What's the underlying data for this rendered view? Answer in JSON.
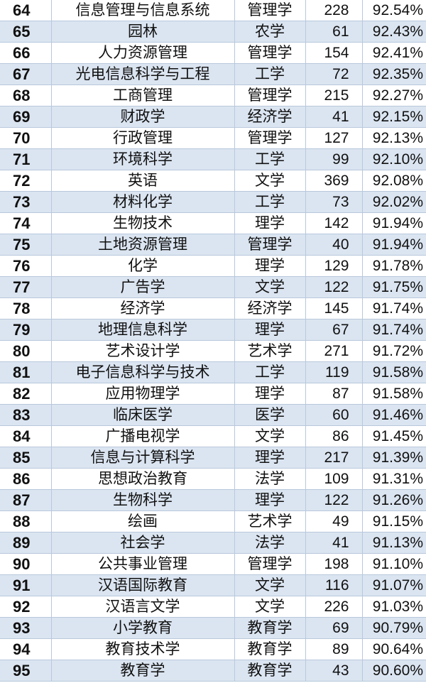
{
  "table": {
    "rows": [
      {
        "rank": "64",
        "major": "信息管理与信息系统",
        "category": "管理学",
        "count": "228",
        "rate": "92.54%"
      },
      {
        "rank": "65",
        "major": "园林",
        "category": "农学",
        "count": "61",
        "rate": "92.43%"
      },
      {
        "rank": "66",
        "major": "人力资源管理",
        "category": "管理学",
        "count": "154",
        "rate": "92.41%"
      },
      {
        "rank": "67",
        "major": "光电信息科学与工程",
        "category": "工学",
        "count": "72",
        "rate": "92.35%"
      },
      {
        "rank": "68",
        "major": "工商管理",
        "category": "管理学",
        "count": "215",
        "rate": "92.27%"
      },
      {
        "rank": "69",
        "major": "财政学",
        "category": "经济学",
        "count": "41",
        "rate": "92.15%"
      },
      {
        "rank": "70",
        "major": "行政管理",
        "category": "管理学",
        "count": "127",
        "rate": "92.13%"
      },
      {
        "rank": "71",
        "major": "环境科学",
        "category": "工学",
        "count": "99",
        "rate": "92.10%"
      },
      {
        "rank": "72",
        "major": "英语",
        "category": "文学",
        "count": "369",
        "rate": "92.08%"
      },
      {
        "rank": "73",
        "major": "材料化学",
        "category": "工学",
        "count": "73",
        "rate": "92.02%"
      },
      {
        "rank": "74",
        "major": "生物技术",
        "category": "理学",
        "count": "142",
        "rate": "91.94%"
      },
      {
        "rank": "75",
        "major": "土地资源管理",
        "category": "管理学",
        "count": "40",
        "rate": "91.94%"
      },
      {
        "rank": "76",
        "major": "化学",
        "category": "理学",
        "count": "129",
        "rate": "91.78%"
      },
      {
        "rank": "77",
        "major": "广告学",
        "category": "文学",
        "count": "122",
        "rate": "91.75%"
      },
      {
        "rank": "78",
        "major": "经济学",
        "category": "经济学",
        "count": "145",
        "rate": "91.74%"
      },
      {
        "rank": "79",
        "major": "地理信息科学",
        "category": "理学",
        "count": "67",
        "rate": "91.74%"
      },
      {
        "rank": "80",
        "major": "艺术设计学",
        "category": "艺术学",
        "count": "271",
        "rate": "91.72%"
      },
      {
        "rank": "81",
        "major": "电子信息科学与技术",
        "category": "工学",
        "count": "119",
        "rate": "91.58%"
      },
      {
        "rank": "82",
        "major": "应用物理学",
        "category": "理学",
        "count": "87",
        "rate": "91.58%"
      },
      {
        "rank": "83",
        "major": "临床医学",
        "category": "医学",
        "count": "60",
        "rate": "91.46%"
      },
      {
        "rank": "84",
        "major": "广播电视学",
        "category": "文学",
        "count": "86",
        "rate": "91.45%"
      },
      {
        "rank": "85",
        "major": "信息与计算科学",
        "category": "理学",
        "count": "217",
        "rate": "91.39%"
      },
      {
        "rank": "86",
        "major": "思想政治教育",
        "category": "法学",
        "count": "109",
        "rate": "91.31%"
      },
      {
        "rank": "87",
        "major": "生物科学",
        "category": "理学",
        "count": "122",
        "rate": "91.26%"
      },
      {
        "rank": "88",
        "major": "绘画",
        "category": "艺术学",
        "count": "49",
        "rate": "91.15%"
      },
      {
        "rank": "89",
        "major": "社会学",
        "category": "法学",
        "count": "41",
        "rate": "91.13%"
      },
      {
        "rank": "90",
        "major": "公共事业管理",
        "category": "管理学",
        "count": "198",
        "rate": "91.10%"
      },
      {
        "rank": "91",
        "major": "汉语国际教育",
        "category": "文学",
        "count": "116",
        "rate": "91.07%"
      },
      {
        "rank": "92",
        "major": "汉语言文学",
        "category": "文学",
        "count": "226",
        "rate": "91.03%"
      },
      {
        "rank": "93",
        "major": "小学教育",
        "category": "教育学",
        "count": "69",
        "rate": "90.79%"
      },
      {
        "rank": "94",
        "major": "教育技术学",
        "category": "教育学",
        "count": "89",
        "rate": "90.64%"
      },
      {
        "rank": "95",
        "major": "教育学",
        "category": "教育学",
        "count": "43",
        "rate": "90.60%"
      }
    ],
    "colors": {
      "alt_row": "#dbe5f1",
      "border": "#b8c8dc"
    }
  }
}
